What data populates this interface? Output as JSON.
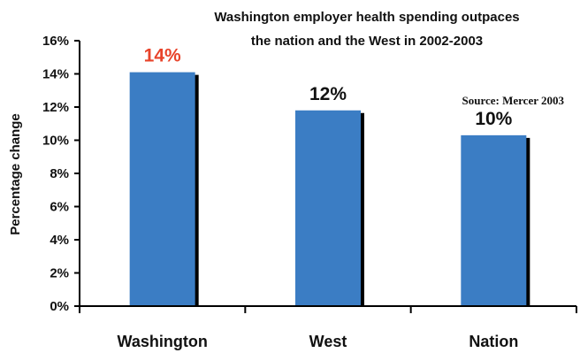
{
  "chart_data": {
    "type": "bar",
    "title_lines": [
      "Washington employer health spending outpaces",
      "the nation and the West in 2002-2003"
    ],
    "source": "Source: Mercer 2003",
    "ylabel": "Percentage change",
    "xlabel": "",
    "categories": [
      "Washington",
      "West",
      "Nation"
    ],
    "values": [
      14.1,
      11.8,
      10.3
    ],
    "value_labels": [
      "14%",
      "12%",
      "10%"
    ],
    "value_label_colors": [
      "#e8432a",
      "#111111",
      "#111111"
    ],
    "ylim": [
      0,
      16
    ],
    "yticks": [
      0,
      2,
      4,
      6,
      8,
      10,
      12,
      14,
      16
    ],
    "ytick_labels": [
      "0%",
      "2%",
      "4%",
      "6%",
      "8%",
      "10%",
      "12%",
      "14%",
      "16%"
    ],
    "grid": false,
    "bar_color": "#3b7dc4",
    "bar_shadow_color": "#000000"
  }
}
